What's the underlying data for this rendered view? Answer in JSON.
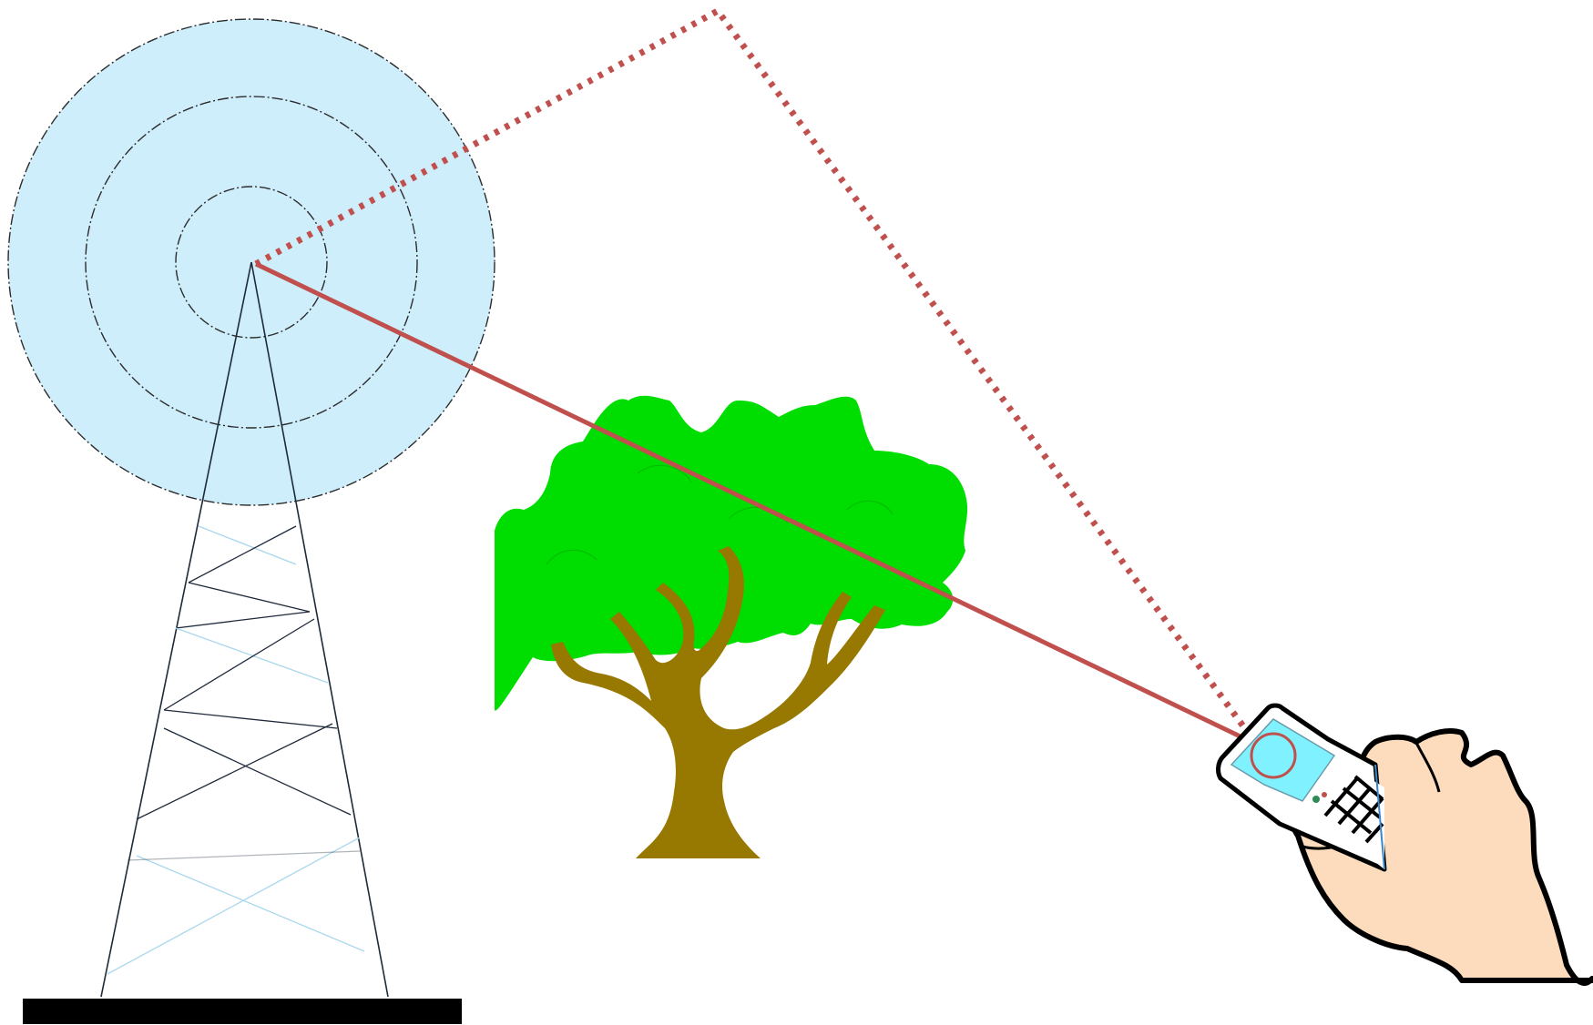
{
  "colors": {
    "background": "#ffffff",
    "coverage_fill": "#cfeefc",
    "coverage_ring": "#2b2b2b",
    "tower_line": "#1e2a3a",
    "tower_brace_light": "#a9d7ee",
    "tower_base": "#000000",
    "signal_path": "#c0504d",
    "tree_foliage": "#00dd00",
    "tree_trunk": "#977800",
    "hand_skin": "#fddcbd",
    "phone_screen": "#80f2ff",
    "phone_body": "#ffffff",
    "outline": "#000000"
  },
  "icons": {
    "tower": "radio-tower-icon",
    "coverage": "coverage-rings-icon",
    "tree": "tree-obstacle-icon",
    "hand": "hand-icon",
    "phone": "mobile-phone-icon"
  },
  "paths": {
    "direct": "line-of-sight",
    "reflected": "reflected-multipath"
  }
}
